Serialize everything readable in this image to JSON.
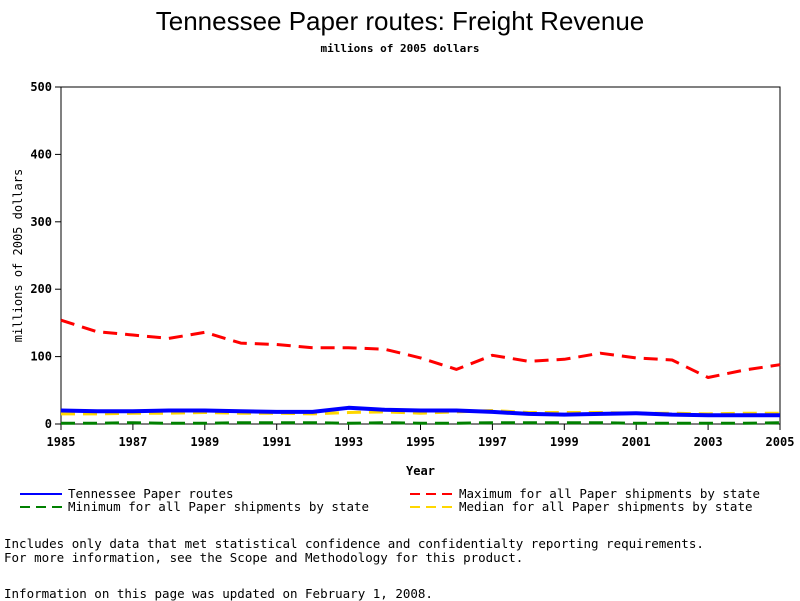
{
  "header": {
    "title": "Tennessee Paper routes: Freight Revenue",
    "subtitle": "millions of 2005 dollars"
  },
  "footer": {
    "note1": "Includes only data that met statistical confidence and confidentialty reporting requirements.",
    "note2": "For more information, see the Scope and Methodology for this product.",
    "updated": "Information on this page was updated on February 1, 2008."
  },
  "chart_data": {
    "type": "line",
    "title": "Tennessee Paper routes: Freight Revenue",
    "subtitle": "millions of 2005 dollars",
    "xlabel": "Year",
    "ylabel": "millions of 2005 dollars",
    "xlim": [
      1985,
      2005
    ],
    "ylim": [
      0,
      500
    ],
    "x_ticks": [
      1985,
      1987,
      1989,
      1991,
      1993,
      1995,
      1997,
      1999,
      2001,
      2003,
      2005
    ],
    "y_ticks": [
      0,
      100,
      200,
      300,
      400,
      500
    ],
    "grid": false,
    "legend_position": "bottom",
    "x": [
      1985,
      1986,
      1987,
      1988,
      1989,
      1990,
      1991,
      1992,
      1993,
      1994,
      1995,
      1996,
      1997,
      1998,
      1999,
      2000,
      2001,
      2002,
      2003,
      2004,
      2005
    ],
    "series": [
      {
        "name": "Tennessee Paper routes",
        "color": "#0000ff",
        "dash": "solid",
        "values": [
          20,
          19,
          19,
          20,
          20,
          19,
          18,
          18,
          24,
          21,
          20,
          20,
          18,
          15,
          14,
          15,
          16,
          14,
          13,
          13,
          13
        ]
      },
      {
        "name": "Maximum for all Paper shipments by state",
        "color": "#ff0000",
        "dash": "dashed",
        "values": [
          154,
          137,
          132,
          127,
          136,
          120,
          118,
          113,
          113,
          111,
          98,
          81,
          102,
          93,
          96,
          105,
          98,
          95,
          69,
          80,
          88
        ]
      },
      {
        "name": "Minimum for all Paper shipments by state",
        "color": "#008000",
        "dash": "dashed",
        "values": [
          1,
          1,
          2,
          1,
          1,
          2,
          2,
          2,
          1,
          2,
          1,
          1,
          2,
          2,
          2,
          2,
          1,
          1,
          1,
          1,
          2
        ]
      },
      {
        "name": "Median for all Paper shipments by state",
        "color": "#ffd700",
        "dash": "dashed",
        "values": [
          15,
          15,
          16,
          16,
          17,
          16,
          16,
          15,
          17,
          18,
          16,
          18,
          20,
          17,
          17,
          17,
          16,
          16,
          15,
          16,
          16
        ]
      }
    ]
  }
}
